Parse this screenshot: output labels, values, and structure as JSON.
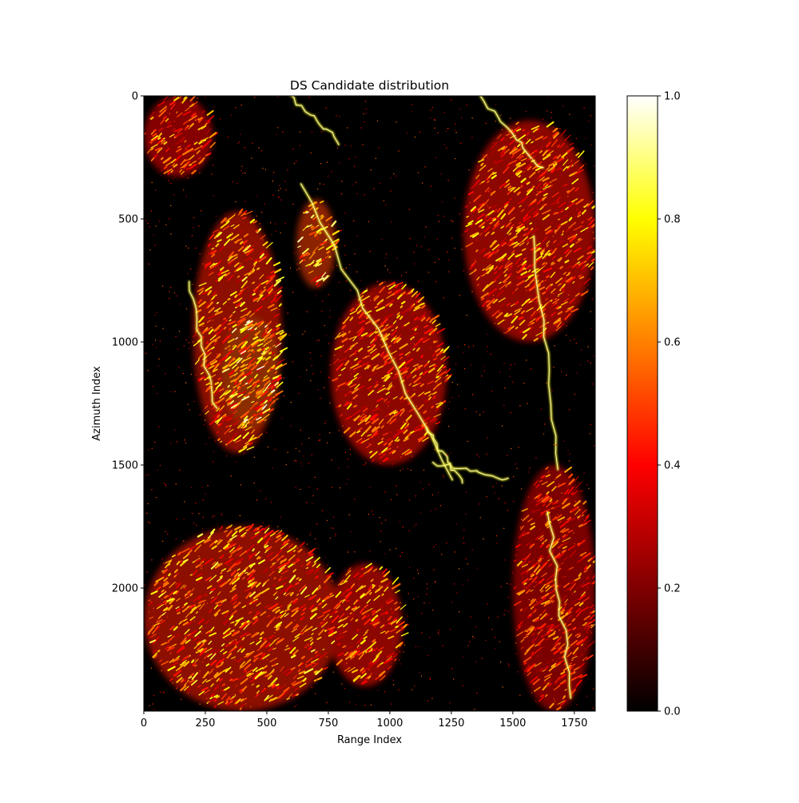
{
  "chart_data": {
    "type": "heatmap",
    "title": "DS Candidate distribution",
    "xlabel": "Range Index",
    "ylabel": "Azimuth Index",
    "xlim": [
      0,
      1835
    ],
    "ylim": [
      2500,
      0
    ],
    "xticks": [
      0,
      250,
      500,
      750,
      1000,
      1250,
      1500,
      1750
    ],
    "xtick_labels": [
      "0",
      "250",
      "500",
      "750",
      "1000",
      "1250",
      "1500",
      "1750"
    ],
    "yticks": [
      0,
      500,
      1000,
      1500,
      2000
    ],
    "ytick_labels": [
      "0",
      "500",
      "1000",
      "1500",
      "2000"
    ],
    "colormap": "hot",
    "colormap_stops": [
      "#000000",
      "#800000",
      "#ff0000",
      "#ff8000",
      "#ffff00",
      "#ffffff"
    ],
    "colorbar": {
      "range": [
        0.0,
        1.0
      ],
      "ticks": [
        0.0,
        0.2,
        0.4,
        0.6,
        0.8,
        1.0
      ],
      "tick_labels": [
        "0.0",
        "0.2",
        "0.4",
        "0.6",
        "0.8",
        "1.0"
      ]
    },
    "grid": false,
    "bright_regions": [
      {
        "x": [
          0,
          280
        ],
        "y": [
          0,
          330
        ],
        "level": 0.65
      },
      {
        "x": [
          200,
          560
        ],
        "y": [
          470,
          1450
        ],
        "level": 0.75
      },
      {
        "x": [
          320,
          550
        ],
        "y": [
          900,
          1350
        ],
        "level": 0.9
      },
      {
        "x": [
          620,
          780
        ],
        "y": [
          420,
          780
        ],
        "level": 0.85
      },
      {
        "x": [
          760,
          1230
        ],
        "y": [
          760,
          1500
        ],
        "level": 0.7
      },
      {
        "x": [
          1300,
          1835
        ],
        "y": [
          100,
          1000
        ],
        "level": 0.7
      },
      {
        "x": [
          0,
          800
        ],
        "y": [
          1750,
          2500
        ],
        "level": 0.75
      },
      {
        "x": [
          750,
          1050
        ],
        "y": [
          1900,
          2400
        ],
        "level": 0.7
      },
      {
        "x": [
          1500,
          1835
        ],
        "y": [
          1500,
          2500
        ],
        "level": 0.6
      }
    ],
    "bright_streaks": [
      {
        "x": [
          185,
          290
        ],
        "y": [
          760,
          1280
        ]
      },
      {
        "x": [
          640,
          1250
        ],
        "y": [
          350,
          1560
        ]
      },
      {
        "x": [
          1170,
          1480
        ],
        "y": [
          1490,
          1560
        ]
      },
      {
        "x": [
          1580,
          1690
        ],
        "y": [
          560,
          1520
        ]
      },
      {
        "x": [
          1640,
          1740
        ],
        "y": [
          1680,
          2450
        ]
      },
      {
        "x": [
          1360,
          1620
        ],
        "y": [
          0,
          300
        ]
      },
      {
        "x": [
          600,
          800
        ],
        "y": [
          0,
          200
        ]
      },
      {
        "x": [
          1150,
          1300
        ],
        "y": [
          1350,
          1580
        ]
      }
    ]
  }
}
